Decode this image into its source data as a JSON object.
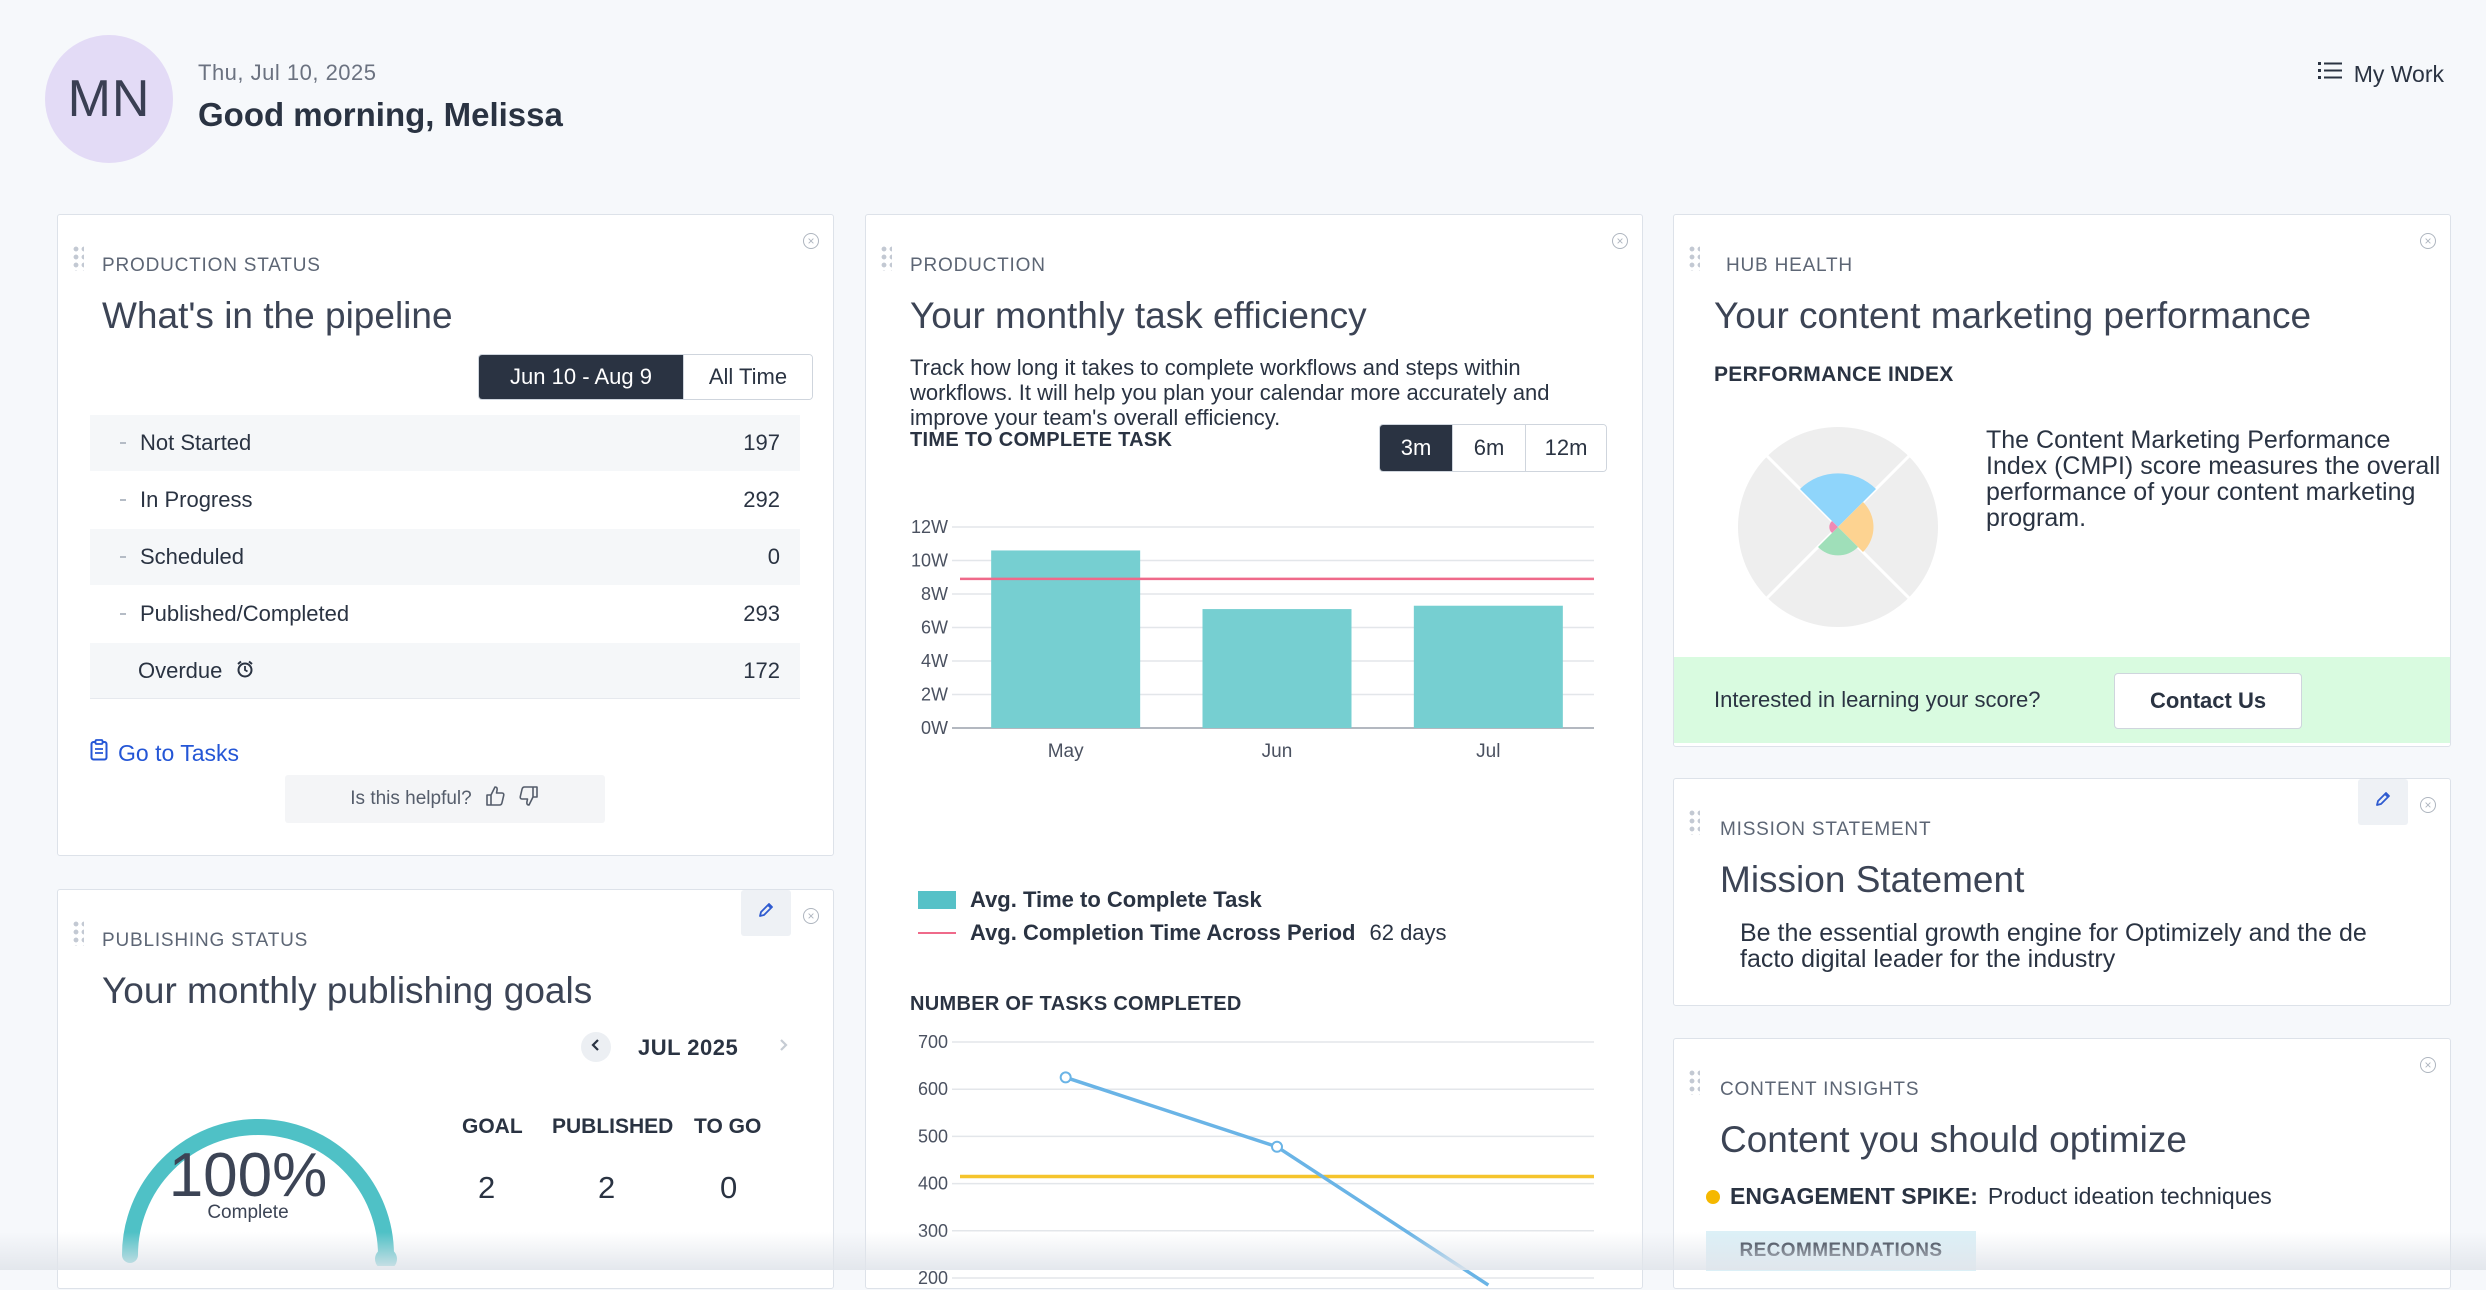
{
  "header": {
    "avatar_initials": "MN",
    "date": "Thu, Jul 10, 2025",
    "greeting": "Good morning, Melissa",
    "my_work": "My Work"
  },
  "pipeline": {
    "eyebrow": "PRODUCTION STATUS",
    "title": "What's in the pipeline",
    "range_active": "Jun 10 - Aug 9",
    "range_all": "All Time",
    "rows": [
      {
        "label": "Not Started",
        "value": "197"
      },
      {
        "label": "In Progress",
        "value": "292"
      },
      {
        "label": "Scheduled",
        "value": "0"
      },
      {
        "label": "Published/Completed",
        "value": "293"
      },
      {
        "label": "Overdue",
        "value": "172"
      }
    ],
    "go_to_tasks": "Go to Tasks",
    "helpful": "Is this helpful?"
  },
  "publishing": {
    "eyebrow": "PUBLISHING STATUS",
    "title": "Your monthly publishing goals",
    "month": "JUL 2025",
    "percent": "100%",
    "percent_value": 100,
    "complete": "Complete",
    "headers": [
      "GOAL",
      "PUBLISHED",
      "TO GO"
    ],
    "values": [
      "2",
      "2",
      "0"
    ]
  },
  "efficiency": {
    "eyebrow": "PRODUCTION",
    "title": "Your monthly task efficiency",
    "description": "Track how long it takes to complete workflows and steps within workflows. It will help you plan your calendar more accurately and improve your team's overall efficiency.",
    "chart1_title": "TIME TO COMPLETE TASK",
    "ranges": [
      "3m",
      "6m",
      "12m"
    ],
    "legend_bar": "Avg. Time to Complete Task",
    "legend_line": "Avg. Completion Time Across Period",
    "legend_line_value": "62 days",
    "chart2_title": "NUMBER OF TASKS COMPLETED"
  },
  "hub": {
    "eyebrow": "HUB HEALTH",
    "title": "Your content marketing performance",
    "index_label": "PERFORMANCE INDEX",
    "cmpi_text": "The Content Marketing Performance Index (CMPI) score measures the overall performance of your content marketing program.",
    "interested": "Interested in learning your score?",
    "contact": "Contact Us"
  },
  "mission": {
    "eyebrow": "MISSION STATEMENT",
    "title": "Mission Statement",
    "text": "Be the essential growth engine for Optimizely and the de facto digital leader for the industry"
  },
  "insights": {
    "eyebrow": "CONTENT INSIGHTS",
    "title": "Content you should optimize",
    "spike_label": "ENGAGEMENT SPIKE:",
    "spike_text": "Product ideation techniques",
    "recommendations": "RECOMMENDATIONS"
  },
  "colors": {
    "bar": "#76cfd1",
    "avg_line": "#ef6a8a",
    "gauge": "#4fc1c6",
    "line_series": "#6ab4e6",
    "threshold": "#f5c42c",
    "dark": "#2a3342",
    "link": "#2456d6"
  },
  "chart_data": [
    {
      "type": "bar",
      "title": "TIME TO COMPLETE TASK",
      "categories": [
        "May",
        "Jun",
        "Jul"
      ],
      "series": [
        {
          "name": "Avg. Time to Complete Task",
          "values": [
            10.6,
            7.1,
            7.3
          ]
        }
      ],
      "reference_line": {
        "name": "Avg. Completion Time Across Period",
        "value": 8.9
      },
      "ylim": [
        0,
        12
      ],
      "yticks": [
        "0W",
        "2W",
        "4W",
        "6W",
        "8W",
        "10W",
        "12W"
      ],
      "ytick_values": [
        0,
        2,
        4,
        6,
        8,
        10,
        12
      ],
      "grid": true,
      "legend": "bottom"
    },
    {
      "type": "line",
      "title": "NUMBER OF TASKS COMPLETED",
      "x": [
        0,
        1,
        2
      ],
      "series": [
        {
          "values": [
            625,
            478,
            185
          ]
        }
      ],
      "threshold": 415,
      "ylim": [
        200,
        700
      ],
      "yticks": [
        "700",
        "600",
        "500",
        "400",
        "300",
        "200"
      ],
      "ytick_values": [
        700,
        600,
        500,
        400,
        300,
        200
      ],
      "grid": true
    }
  ]
}
